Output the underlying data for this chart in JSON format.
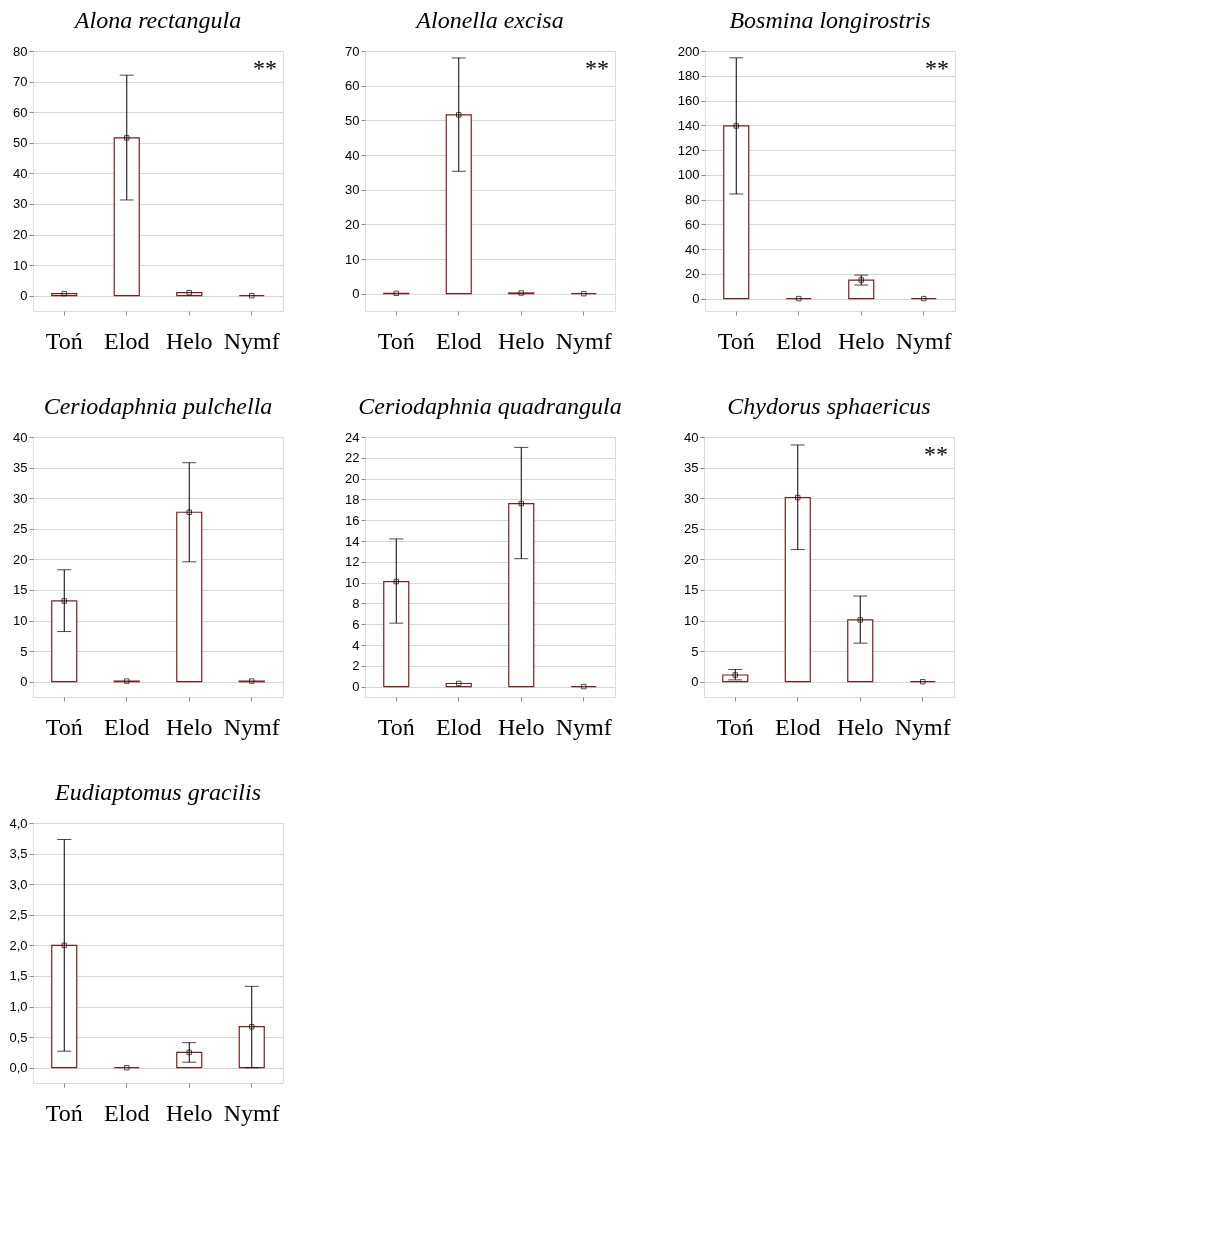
{
  "chart_data": [
    {
      "type": "bar",
      "title": "Alona rectangula",
      "categories": [
        "Toń",
        "Elod",
        "Helo",
        "Nymf"
      ],
      "ylim": [
        -5,
        80
      ],
      "yticks": [
        0,
        10,
        20,
        30,
        40,
        50,
        60,
        70,
        80
      ],
      "grid": "y",
      "annotations": [
        "**"
      ],
      "series": [
        {
          "type": "bar",
          "color": "#7f1f1f",
          "values": [
            0.7,
            51.6,
            1.0,
            0.0
          ],
          "errors": [
            null,
            [
              31.3,
              72.1
            ],
            null,
            null
          ]
        },
        {
          "type": "scatter",
          "color": "#000000",
          "marker": "square",
          "x": [
            "Toń",
            "Elod",
            "Helo",
            "Nymf"
          ],
          "values": [
            0.7,
            51.6,
            1.0,
            0.0
          ]
        }
      ]
    },
    {
      "type": "bar",
      "title": "Alonella excisa",
      "categories": [
        "Toń",
        "Elod",
        "Helo",
        "Nymf"
      ],
      "ylim": [
        -5,
        70
      ],
      "yticks": [
        0,
        10,
        20,
        30,
        40,
        50,
        60,
        70
      ],
      "grid": "y",
      "annotations": [
        "**"
      ],
      "series": [
        {
          "type": "bar",
          "color": "#7f1f1f",
          "values": [
            0.1,
            51.6,
            0.2,
            0.0
          ],
          "errors": [
            null,
            [
              35.3,
              68.0
            ],
            null,
            null
          ]
        },
        {
          "type": "scatter",
          "color": "#000000",
          "marker": "square",
          "x": [
            "Toń",
            "Elod",
            "Helo",
            "Nymf"
          ],
          "values": [
            0.1,
            51.6,
            0.2,
            0.0
          ]
        }
      ]
    },
    {
      "type": "bar",
      "title": "Bosmina longirostris",
      "categories": [
        "Toń",
        "Elod",
        "Helo",
        "Nymf"
      ],
      "ylim": [
        -10,
        200
      ],
      "yticks": [
        0,
        20,
        40,
        60,
        80,
        100,
        120,
        140,
        160,
        180,
        200
      ],
      "grid": "y",
      "annotations": [
        "**"
      ],
      "series": [
        {
          "type": "bar",
          "color": "#7f1f1f",
          "values": [
            139.5,
            0,
            15,
            0
          ],
          "errors": [
            [
              84.5,
              194.5
            ],
            null,
            [
              11,
              19
            ],
            null
          ]
        },
        {
          "type": "scatter",
          "color": "#000000",
          "marker": "square",
          "x": [
            "Toń",
            "Elod",
            "Helo",
            "Nymf"
          ],
          "values": [
            139.5,
            0,
            15,
            0
          ]
        }
      ]
    },
    {
      "type": "bar",
      "title": "Ceriodaphnia pulchella",
      "categories": [
        "Toń",
        "Elod",
        "Helo",
        "Nymf"
      ],
      "ylim": [
        -2.5,
        40
      ],
      "yticks": [
        0,
        5,
        10,
        15,
        20,
        25,
        30,
        35,
        40
      ],
      "grid": "y",
      "series": [
        {
          "type": "bar",
          "color": "#7f1f1f",
          "values": [
            13.2,
            0.1,
            27.7,
            0.1
          ],
          "errors": [
            [
              8.2,
              18.3
            ],
            null,
            [
              19.6,
              35.8
            ],
            null
          ]
        },
        {
          "type": "scatter",
          "color": "#000000",
          "marker": "square",
          "x": [
            "Toń",
            "Elod",
            "Helo",
            "Nymf"
          ],
          "values": [
            13.2,
            0.1,
            27.7,
            0.1
          ]
        }
      ]
    },
    {
      "type": "bar",
      "title": "Ceriodaphnia quadrangula",
      "categories": [
        "Toń",
        "Elod",
        "Helo",
        "Nymf"
      ],
      "ylim": [
        -1,
        24
      ],
      "yticks": [
        0,
        2,
        4,
        6,
        8,
        10,
        12,
        14,
        16,
        18,
        20,
        22,
        24
      ],
      "grid": "y",
      "series": [
        {
          "type": "bar",
          "color": "#7f1f1f",
          "values": [
            10.1,
            0.3,
            17.6,
            0.0
          ],
          "errors": [
            [
              6.1,
              14.2
            ],
            null,
            [
              12.3,
              23.0
            ],
            null
          ]
        },
        {
          "type": "scatter",
          "color": "#000000",
          "marker": "square",
          "x": [
            "Toń",
            "Elod",
            "Helo",
            "Nymf"
          ],
          "values": [
            10.1,
            0.3,
            17.6,
            0.0
          ]
        }
      ]
    },
    {
      "type": "bar",
      "title": "Chydorus sphaericus",
      "categories": [
        "Toń",
        "Elod",
        "Helo",
        "Nymf"
      ],
      "ylim": [
        -2.5,
        40
      ],
      "yticks": [
        0,
        5,
        10,
        15,
        20,
        25,
        30,
        35,
        40
      ],
      "grid": "y",
      "annotations": [
        "**"
      ],
      "series": [
        {
          "type": "bar",
          "color": "#7f1f1f",
          "values": [
            1.1,
            30.1,
            10.1,
            0.0
          ],
          "errors": [
            [
              0.3,
              2.0
            ],
            [
              21.6,
              38.7
            ],
            [
              6.3,
              14.0
            ],
            null
          ]
        },
        {
          "type": "scatter",
          "color": "#000000",
          "marker": "square",
          "x": [
            "Toń",
            "Elod",
            "Helo",
            "Nymf"
          ],
          "values": [
            1.1,
            30.1,
            10.1,
            0.0
          ]
        }
      ]
    },
    {
      "type": "bar",
      "title": "Eudiaptomus gracilis",
      "categories": [
        "Toń",
        "Elod",
        "Helo",
        "Nymf"
      ],
      "ylim": [
        -0.25,
        4.0
      ],
      "yticks": [
        {
          "value": 0,
          "label": "0,0"
        },
        {
          "value": 0.5,
          "label": "0,5"
        },
        {
          "value": 1.0,
          "label": "1,0"
        },
        {
          "value": 1.5,
          "label": "1,5"
        },
        {
          "value": 2.0,
          "label": "2,0"
        },
        {
          "value": 2.5,
          "label": "2,5"
        },
        {
          "value": 3.0,
          "label": "3,0"
        },
        {
          "value": 3.5,
          "label": "3,5"
        },
        {
          "value": 4.0,
          "label": "4,0"
        }
      ],
      "grid": "y",
      "series": [
        {
          "type": "bar",
          "color": "#7f1f1f",
          "values": [
            2.0,
            0.0,
            0.25,
            0.67
          ],
          "errors": [
            [
              0.27,
              3.73
            ],
            null,
            [
              0.09,
              0.41
            ],
            [
              0.0,
              1.33
            ]
          ]
        },
        {
          "type": "scatter",
          "color": "#000000",
          "marker": "square",
          "x": [
            "Toń",
            "Elod",
            "Helo",
            "Nymf"
          ],
          "values": [
            2.0,
            0.0,
            0.25,
            0.67
          ]
        }
      ]
    }
  ]
}
